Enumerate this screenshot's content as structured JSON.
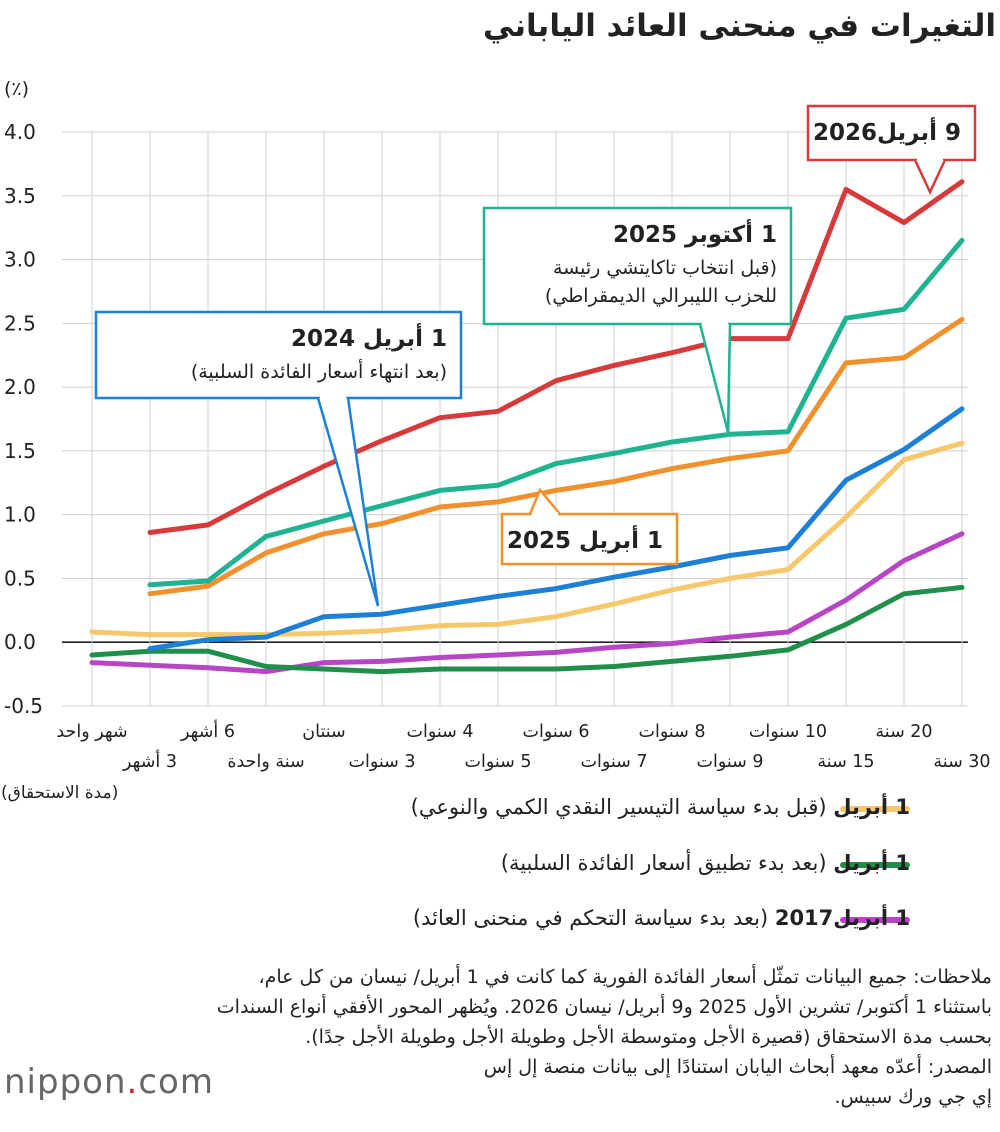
{
  "title": "التغيرات في منحنى العائد الياباني",
  "chart_data": {
    "type": "line",
    "title": "التغيرات في منحنى العائد الياباني",
    "ylabel": "(٪)",
    "xlabel": "(مدة الاستحقاق)",
    "ylim": [
      -0.5,
      4.0
    ],
    "yticks": [
      "4.0",
      "3.5",
      "3.0",
      "2.5",
      "2.0",
      "1.5",
      "1.0",
      "0.5",
      "0.0",
      "-0.5"
    ],
    "grid": true,
    "x": [
      "شهر واحد",
      "3 أشهر",
      "6 أشهر",
      "سنة واحدة",
      "سنتان",
      "3 سنوات",
      "4 سنوات",
      "5 سنوات",
      "6 سنوات",
      "7 سنوات",
      "8 سنوات",
      "9 سنوات",
      "10 سنوات",
      "15 سنة",
      "20 سنة",
      "30 سنة"
    ],
    "series": [
      {
        "name": "9 أبريل2026",
        "color": "#d63a3a",
        "values": [
          null,
          0.86,
          0.92,
          1.16,
          1.38,
          1.58,
          1.76,
          1.81,
          2.05,
          2.17,
          2.27,
          2.38,
          2.38,
          3.55,
          3.29,
          3.61
        ]
      },
      {
        "name": "1 أكتوبر 2025",
        "color": "#1fb391",
        "values": [
          null,
          0.45,
          0.48,
          0.83,
          0.95,
          1.07,
          1.19,
          1.23,
          1.4,
          1.48,
          1.57,
          1.63,
          1.65,
          2.54,
          2.61,
          3.15
        ]
      },
      {
        "name": "1 أبريل 2025",
        "color": "#f0912e",
        "values": [
          null,
          0.38,
          0.44,
          0.7,
          0.85,
          0.93,
          1.06,
          1.1,
          1.19,
          1.26,
          1.36,
          1.44,
          1.5,
          2.19,
          2.23,
          2.53
        ]
      },
      {
        "name": "1 أبريل 2024",
        "color": "#1e7fd6",
        "values": [
          null,
          -0.05,
          0.02,
          0.04,
          0.2,
          0.22,
          0.29,
          0.36,
          0.42,
          0.51,
          0.59,
          0.68,
          0.74,
          1.27,
          1.51,
          1.83
        ]
      },
      {
        "name": "1 أبريل (قبل بدء سياسة التيسير النقدي الكمي والنوعي)",
        "color": "#f7c86b",
        "values": [
          0.08,
          0.06,
          0.06,
          0.06,
          0.07,
          0.09,
          0.13,
          0.14,
          0.2,
          0.3,
          0.41,
          0.5,
          0.57,
          0.98,
          1.43,
          1.56
        ]
      },
      {
        "name": "1 أبريل (بعد بدء تطبيق أسعار الفائدة السلبية)",
        "color": "#1f8f4a",
        "values": [
          -0.1,
          -0.07,
          -0.07,
          -0.19,
          -0.21,
          -0.23,
          -0.21,
          -0.21,
          -0.21,
          -0.19,
          -0.15,
          -0.11,
          -0.06,
          0.14,
          0.38,
          0.43
        ]
      },
      {
        "name": "1 أبريل2017 (بعد بدء سياسة التحكم في منحنى العائد)",
        "color": "#b845c6",
        "values": [
          -0.16,
          -0.18,
          -0.2,
          -0.23,
          -0.16,
          -0.15,
          -0.12,
          -0.1,
          -0.08,
          -0.04,
          -0.01,
          0.04,
          0.08,
          0.33,
          0.64,
          0.85
        ]
      }
    ],
    "annotations": [
      {
        "series": 0,
        "lines": [
          "9 أبريل2026"
        ],
        "color": "#d63a3a"
      },
      {
        "series": 1,
        "lines": [
          "1 أكتوبر 2025",
          "(قبل انتخاب تاكايتشي رئيسة",
          "للحزب الليبرالي الديمقراطي)"
        ],
        "color": "#1fb391"
      },
      {
        "series": 2,
        "lines": [
          "1 أبريل 2025"
        ],
        "color": "#f0912e"
      },
      {
        "series": 3,
        "lines": [
          "1 أبريل 2024",
          "(بعد انتهاء أسعار الفائدة السلبية)"
        ],
        "color": "#1e7fd6"
      }
    ]
  },
  "legend": [
    {
      "date": "1 أبريل",
      "note": "(قبل بدء سياسة التيسير النقدي الكمي والنوعي)",
      "color": "#f7c86b"
    },
    {
      "date": "1 أبريل",
      "note": "(بعد بدء تطبيق أسعار الفائدة السلبية)",
      "color": "#1f8f4a"
    },
    {
      "date": "1 أبريل2017",
      "note": "(بعد بدء سياسة التحكم في منحنى العائد)",
      "color": "#b845c6"
    }
  ],
  "notes": [
    "ملاحظات: جميع البيانات تمثّل أسعار الفائدة الفورية كما كانت في 1 أبريل/ نيسان من كل عام،",
    "باستثناء 1 أكتوبر/ تشرين الأول 2025 و9 أبريل/ نيسان 2026. ويُظهر المحور الأفقي أنواع السندات",
    "بحسب مدة الاستحقاق (قصيرة الأجل ومتوسطة الأجل وطويلة الأجل وطويلة الأجل جدًا).",
    "المصدر: أعدّه معهد أبحاث اليابان استنادًا إلى بيانات منصة إل إس",
    "إي جي ورك سبيس."
  ],
  "logo": {
    "main": "nippon",
    "dot": ".",
    "tld": "com"
  }
}
